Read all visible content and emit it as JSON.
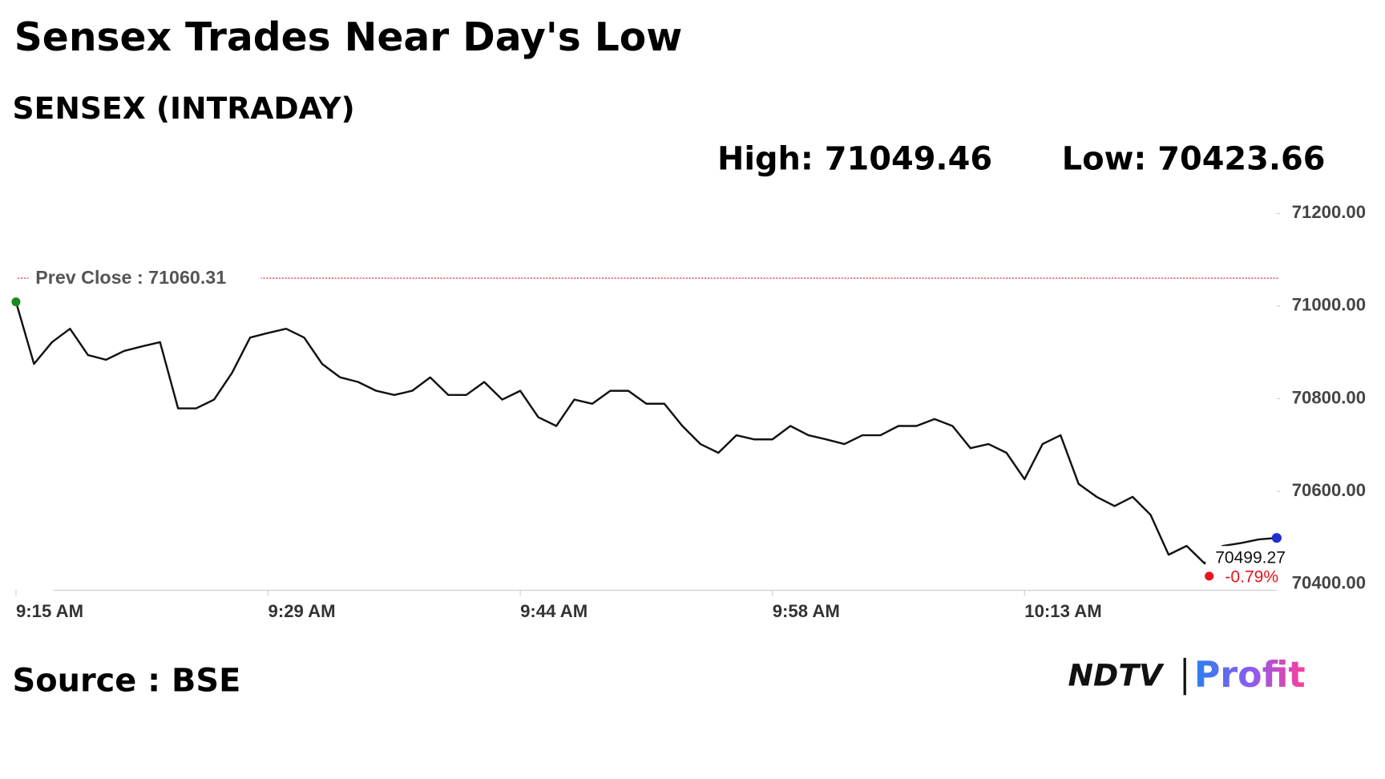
{
  "chart_data": {
    "type": "line",
    "title": "Sensex Trades Near Day's Low",
    "subtitle": "SENSEX (INTRADAY)",
    "high": {
      "label": "High:",
      "value": 71049.46
    },
    "low": {
      "label": "Low:",
      "value": 70423.66
    },
    "reference": {
      "label": "Prev Close :",
      "value": 71060.31,
      "color": "#d62728"
    },
    "last_change": {
      "value": -0.79,
      "label": "-0.79%",
      "color": "#e8141c"
    },
    "categories": [
      "9:15 AM",
      null,
      null,
      null,
      null,
      null,
      null,
      null,
      null,
      null,
      null,
      null,
      null,
      null,
      "9:29 AM",
      null,
      null,
      null,
      null,
      null,
      null,
      null,
      null,
      null,
      null,
      null,
      null,
      null,
      "9:44 AM",
      null,
      null,
      null,
      null,
      null,
      null,
      null,
      null,
      null,
      null,
      null,
      null,
      null,
      "9:58 AM",
      null,
      null,
      null,
      null,
      null,
      null,
      null,
      null,
      null,
      null,
      null,
      null,
      null,
      "10:13 AM",
      null,
      null,
      null,
      null,
      null,
      null,
      null,
      null,
      null,
      null,
      null,
      null,
      null,
      null
    ],
    "series": [
      {
        "name": "SENSEX",
        "color": "#111111",
        "values": [
          71009,
          70875,
          70922,
          70951,
          70894,
          70884,
          70903,
          70913,
          70922,
          70779,
          70779,
          70798,
          70856,
          70932,
          70942,
          70951,
          70932,
          70875,
          70846,
          70836,
          70817,
          70808,
          70817,
          70846,
          70808,
          70808,
          70836,
          70798,
          70817,
          70760,
          70741,
          70798,
          70789,
          70817,
          70817,
          70789,
          70789,
          70741,
          70702,
          70683,
          70721,
          70712,
          70712,
          70741,
          70721,
          70712,
          70702,
          70721,
          70721,
          70741,
          70741,
          70756,
          70741,
          70693,
          70702,
          70683,
          70626,
          70702,
          70721,
          70616,
          70588,
          70568,
          70588,
          70549,
          70463,
          70482,
          70444,
          70482,
          70488,
          70496,
          70499.27
        ]
      }
    ],
    "ylim": [
      70386,
      71220
    ],
    "yticks": [
      {
        "value": 70400,
        "label": "70400.00"
      },
      {
        "value": 70600,
        "label": "70600.00"
      },
      {
        "value": 70800,
        "label": "70800.00"
      },
      {
        "value": 71000,
        "label": "71000.00"
      },
      {
        "value": 71200,
        "label": "71200.00"
      }
    ],
    "source": "Source : BSE",
    "logo": {
      "brand": "NDTV",
      "product": "Profit"
    }
  }
}
